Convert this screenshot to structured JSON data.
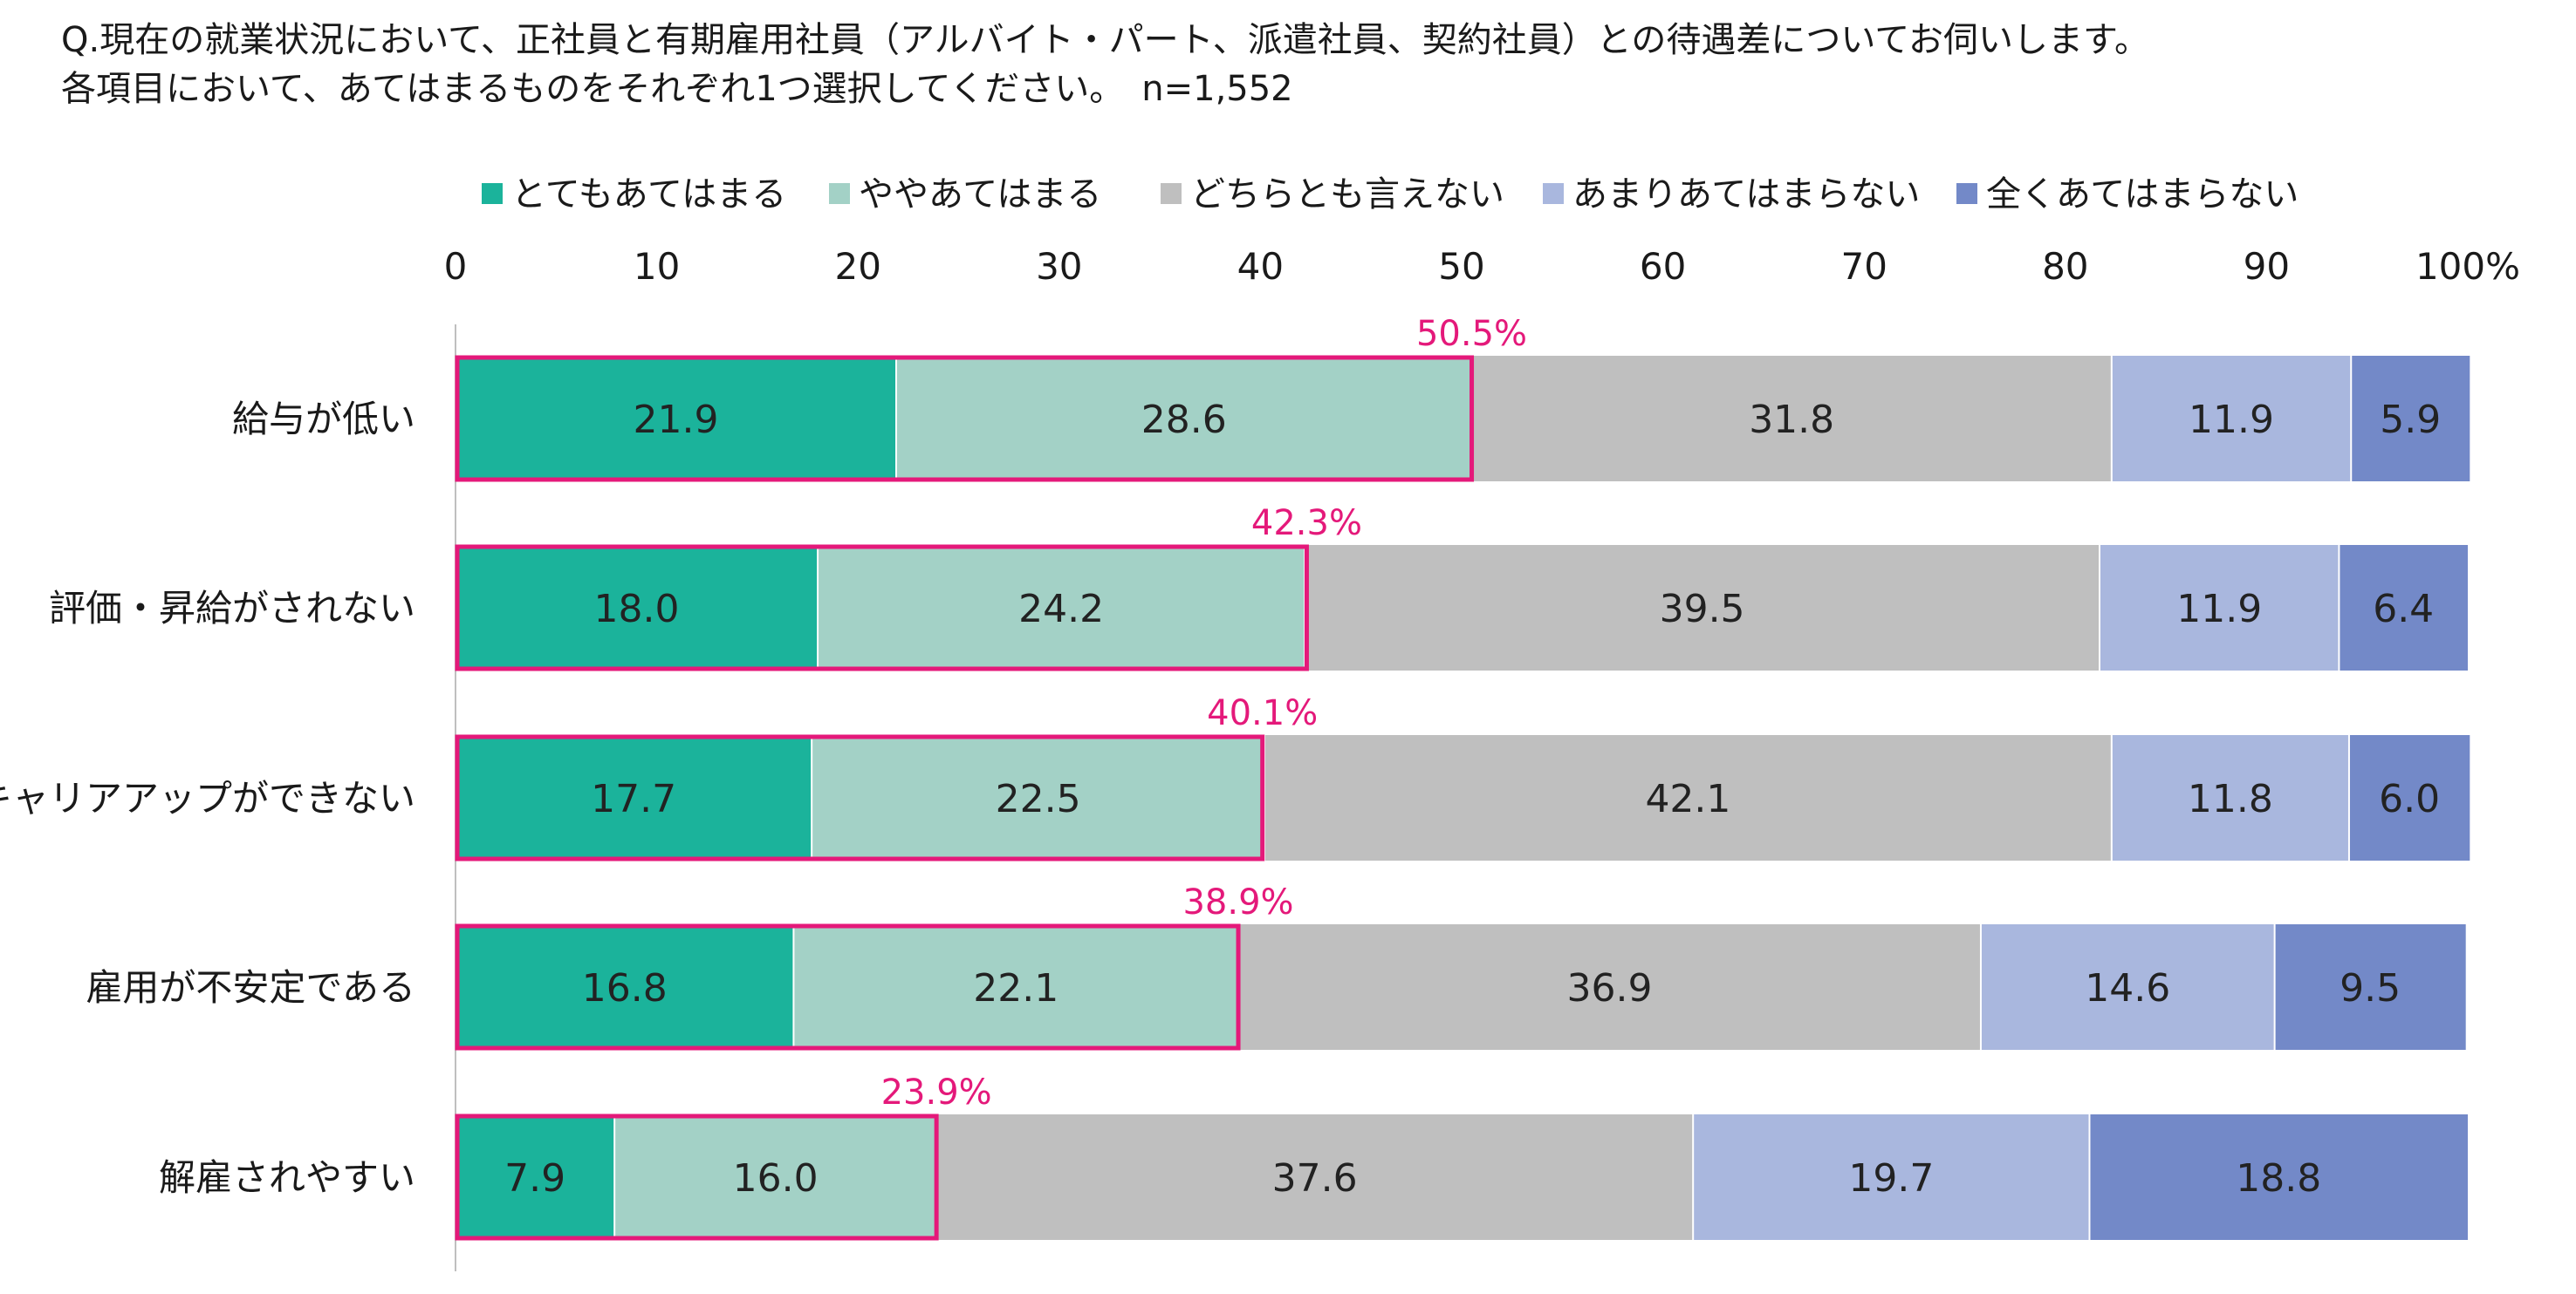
{
  "question": {
    "line1": "Q.現在の就業状況において、正社員と有期雇用社員（アルバイト・パート、派遣社員、契約社員）との待遇差についてお伺いします。",
    "line2": "各項目において、あてはまるものをそれぞれ1つ選択してください。　n=1,552"
  },
  "chart_data": {
    "type": "bar",
    "orientation": "horizontal-stacked-100",
    "xlim": [
      0,
      100
    ],
    "ticks": [
      "0",
      "10",
      "20",
      "30",
      "40",
      "50",
      "60",
      "70",
      "80",
      "90",
      "100%"
    ],
    "legend_position": "top",
    "categories": [
      "給与が低い",
      "評価・昇給がされない",
      "キャリアアップができない",
      "雇用が不安定である",
      "解雇されやすい"
    ],
    "series": [
      {
        "name": "とてもあてはまる",
        "color": "#1bb39b",
        "values": [
          21.9,
          18.0,
          17.7,
          16.8,
          7.9
        ],
        "labels": [
          "21.9",
          "18.0",
          "17.7",
          "16.8",
          "7.9"
        ]
      },
      {
        "name": "ややあてはまる",
        "color": "#a3d1c6",
        "values": [
          28.6,
          24.2,
          22.5,
          22.1,
          16.0
        ],
        "labels": [
          "28.6",
          "24.2",
          "22.5",
          "22.1",
          "16.0"
        ]
      },
      {
        "name": "どちらとも言えない",
        "color": "#bfbfbf",
        "values": [
          31.8,
          39.5,
          42.1,
          36.9,
          37.6
        ],
        "labels": [
          "31.8",
          "39.5",
          "42.1",
          "36.9",
          "37.6"
        ]
      },
      {
        "name": "あまりあてはまらない",
        "color": "#a9b7de",
        "values": [
          11.9,
          11.9,
          11.8,
          14.6,
          19.7
        ],
        "labels": [
          "11.9",
          "11.9",
          "11.8",
          "14.6",
          "19.7"
        ]
      },
      {
        "name": "全くあてはまらない",
        "color": "#7389c8",
        "values": [
          5.9,
          6.4,
          6.0,
          9.5,
          18.8
        ],
        "labels": [
          "5.9",
          "6.4",
          "6.0",
          "9.5",
          "18.8"
        ]
      }
    ],
    "highlight": {
      "color": "#e4197a",
      "values": [
        50.5,
        42.3,
        40.1,
        38.9,
        23.9
      ],
      "labels": [
        "50.5%",
        "42.3%",
        "40.1%",
        "38.9%",
        "23.9%"
      ]
    }
  }
}
